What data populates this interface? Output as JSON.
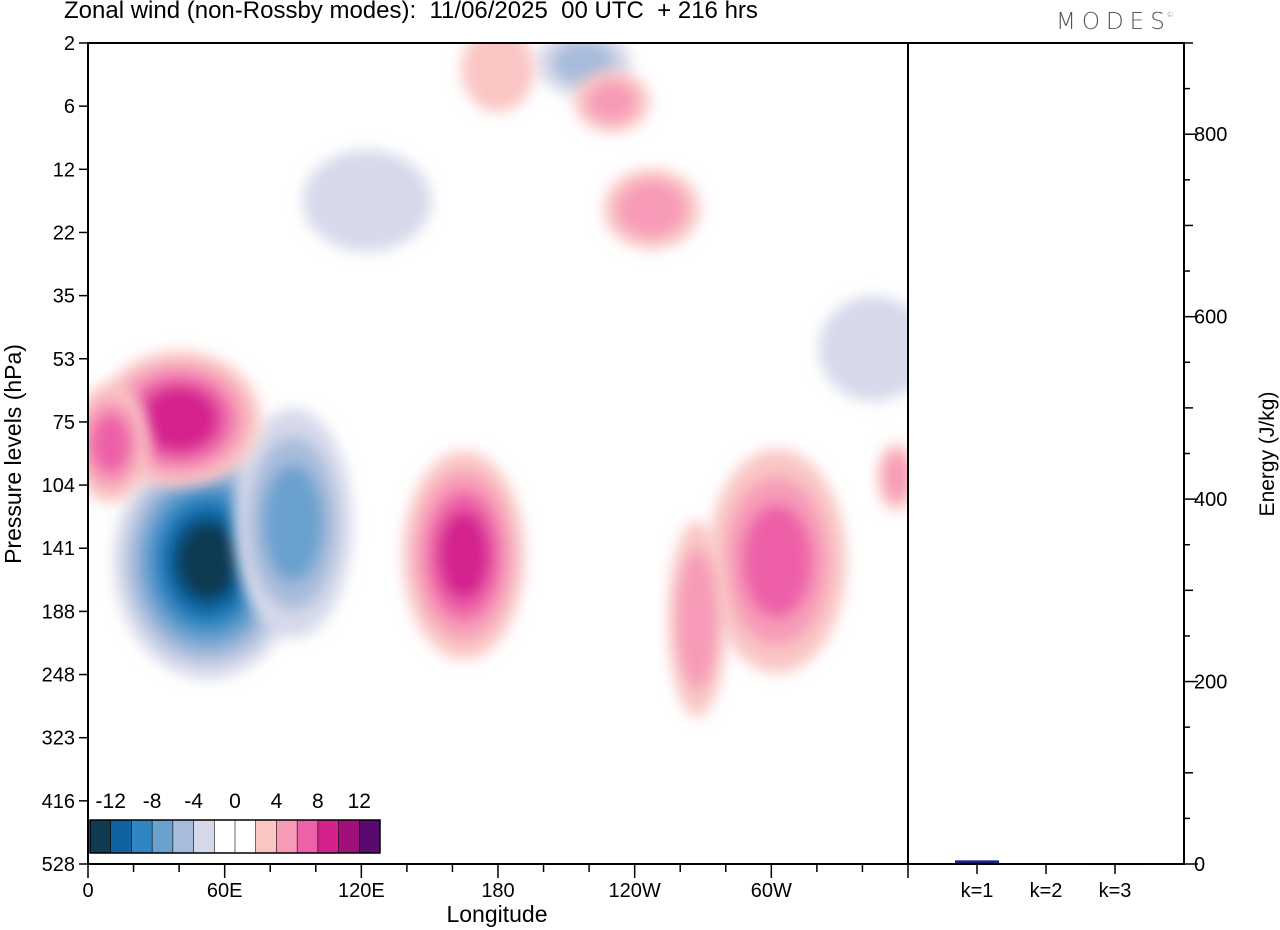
{
  "header": {
    "title": "Zonal wind (non-Rossby modes):  11/06/2025  00 UTC  + 216 hrs",
    "brand": "MODES",
    "brand_mark": "©"
  },
  "colors": {
    "scale": [
      "#0f3a52",
      "#1163a0",
      "#2f86c2",
      "#6aa1cf",
      "#a7bcdb",
      "#d6d9ea",
      "#ffffff",
      "#ffffff",
      "#f9c6c4",
      "#f79bb8",
      "#ed61a8",
      "#d4218e",
      "#a0107a",
      "#5a0a6e"
    ],
    "bar": "#1a237e"
  },
  "chart_data": [
    {
      "type": "heatmap",
      "title": "Zonal wind (non-Rossby modes):  11/06/2025  00 UTC  + 216 hrs",
      "xlabel": "Longitude",
      "ylabel": "Pressure levels (hPa)",
      "x_tick_labels": [
        "0",
        "60E",
        "120E",
        "180",
        "120W",
        "60W"
      ],
      "x_ticks_deg": [
        0,
        60,
        120,
        180,
        240,
        300
      ],
      "xlim": [
        0,
        360
      ],
      "y_tick_labels": [
        "2",
        "6",
        "12",
        "22",
        "35",
        "53",
        "75",
        "104",
        "141",
        "188",
        "248",
        "323",
        "416",
        "528"
      ],
      "y_scale": "log-pressure, top = 2 hPa, bottom = 528 hPa",
      "colorbar": {
        "tick_labels": [
          "-12",
          "-8",
          "-4",
          "0",
          "4",
          "8",
          "12"
        ],
        "levels": [
          -14,
          -12,
          -10,
          -8,
          -6,
          -4,
          -2,
          0,
          2,
          4,
          6,
          8,
          10,
          12,
          14
        ],
        "placement": "bottom-left inside plot"
      },
      "features": [
        {
          "sign": "negative",
          "peak": -13,
          "lon": [
            30,
            75
          ],
          "hPa": [
            110,
            200
          ]
        },
        {
          "sign": "negative",
          "peak": -7,
          "lon": [
            75,
            105
          ],
          "hPa": [
            90,
            170
          ]
        },
        {
          "sign": "negative",
          "peak": -5,
          "lon": [
            205,
            230
          ],
          "hPa": [
            2,
            4
          ]
        },
        {
          "sign": "negative",
          "peak": -4,
          "lon": [
            330,
            360
          ],
          "hPa": [
            40,
            60
          ]
        },
        {
          "sign": "negative",
          "peak": -4,
          "lon": [
            105,
            140
          ],
          "hPa": [
            12,
            22
          ]
        },
        {
          "sign": "positive",
          "peak": 10,
          "lon": [
            20,
            60
          ],
          "hPa": [
            60,
            90
          ]
        },
        {
          "sign": "positive",
          "peak": 7,
          "lon": [
            0,
            20
          ],
          "hPa": [
            70,
            100
          ]
        },
        {
          "sign": "positive",
          "peak": 9,
          "lon": [
            150,
            180
          ],
          "hPa": [
            110,
            190
          ]
        },
        {
          "sign": "positive",
          "peak": 7,
          "lon": [
            285,
            320
          ],
          "hPa": [
            110,
            200
          ]
        },
        {
          "sign": "positive",
          "peak": 6,
          "lon": [
            350,
            360
          ],
          "hPa": [
            90,
            110
          ]
        },
        {
          "sign": "positive",
          "peak": 6,
          "lon": [
            235,
            260
          ],
          "hPa": [
            14,
            22
          ]
        },
        {
          "sign": "positive",
          "peak": 6,
          "lon": [
            260,
            275
          ],
          "hPa": [
            150,
            250
          ]
        },
        {
          "sign": "positive",
          "peak": 5,
          "lon": [
            220,
            240
          ],
          "hPa": [
            4,
            7
          ]
        },
        {
          "sign": "positive",
          "peak": 4,
          "lon": [
            170,
            190
          ],
          "hPa": [
            2,
            5
          ]
        }
      ]
    },
    {
      "type": "bar",
      "categories": [
        "k=1",
        "k=2",
        "k=3"
      ],
      "values": [
        4,
        1,
        0.5
      ],
      "ylabel": "Energy (J/kg)",
      "ylim": [
        0,
        900
      ],
      "y_tick_labels": [
        "0",
        "200",
        "400",
        "600",
        "800"
      ],
      "y_tick_values": [
        0,
        200,
        400,
        600,
        800
      ]
    }
  ]
}
